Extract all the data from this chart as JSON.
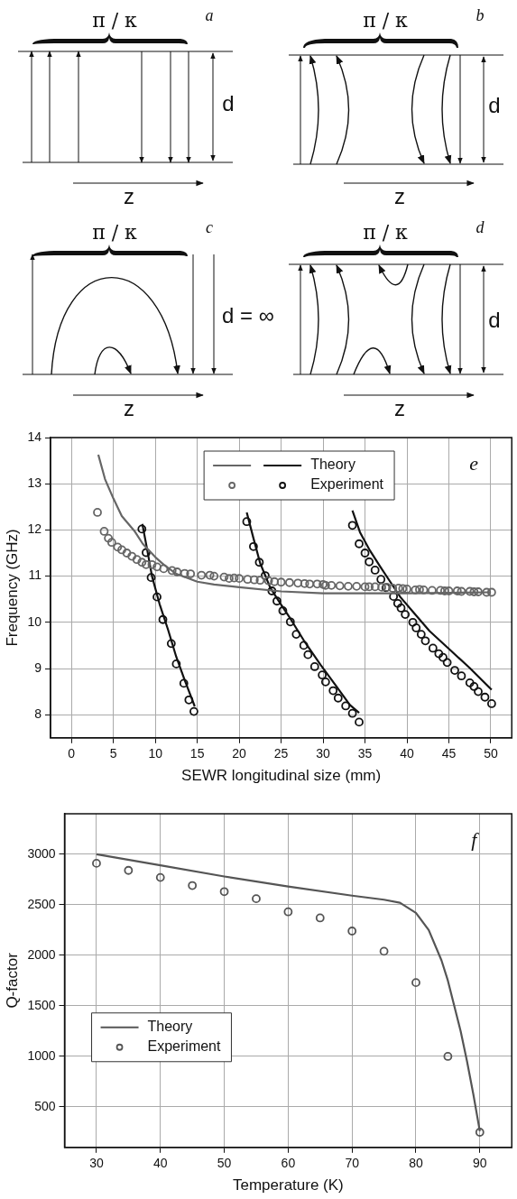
{
  "chart_data": [
    {
      "type": "other",
      "annotations": [
        "π / κ",
        "a",
        "d",
        "z",
        "π / κ",
        "b",
        "d",
        "z",
        "π / κ",
        "c",
        "d = ∞",
        "z",
        "π / κ",
        "d",
        "d",
        "z"
      ]
    },
    {
      "type": "line",
      "xlabel": "SEWR longitudinal size (mm)",
      "ylabel": "Frequency (GHz)",
      "xlim": [
        -2.5,
        52.5
      ],
      "ylim": [
        7.5,
        14
      ],
      "xticks": [
        0,
        5,
        10,
        15,
        20,
        25,
        30,
        35,
        40,
        45,
        50
      ],
      "yticks": [
        8,
        9,
        10,
        11,
        12,
        13,
        14
      ],
      "grid": true,
      "legend": "top",
      "annotations": [
        "e"
      ],
      "series": [
        {
          "type": "line",
          "color": "#666666",
          "x": [
            3.2,
            4,
            5,
            6,
            7.5,
            8.5,
            10,
            11,
            12.5,
            15,
            17,
            20,
            25,
            30,
            35,
            40,
            45,
            50
          ],
          "values": [
            13.63,
            13.1,
            12.68,
            12.3,
            11.98,
            11.7,
            11.41,
            11.25,
            11.05,
            10.88,
            10.82,
            10.76,
            10.67,
            10.63,
            10.63,
            10.63,
            10.64,
            10.65
          ]
        },
        {
          "type": "scatter",
          "marker": "circle",
          "color": "#666666",
          "x": [
            3.1,
            3.9,
            4.4,
            4.8,
            5.5,
            6,
            6.6,
            7.2,
            7.8,
            8.4,
            8.9,
            9.6,
            10.2,
            11,
            12,
            12.6,
            13.5,
            14.2,
            15.5,
            16.5,
            17,
            18.2,
            18.8,
            19.4,
            20,
            21,
            21.8,
            22.5,
            23.5,
            24.2,
            25,
            26,
            27,
            27.8,
            28.4,
            29.3,
            30,
            30.3,
            31,
            32,
            33,
            34,
            35,
            35.5,
            36.2,
            37,
            37.6,
            38.3,
            39,
            39.5,
            40,
            41,
            41.5,
            42,
            43,
            44,
            44.5,
            45,
            46,
            46.5,
            47.5,
            48,
            48.5,
            49.5,
            50.1
          ],
          "values": [
            12.38,
            11.97,
            11.82,
            11.73,
            11.63,
            11.57,
            11.5,
            11.43,
            11.36,
            11.3,
            11.25,
            11.25,
            11.2,
            11.16,
            11.12,
            11.09,
            11.06,
            11.05,
            11.02,
            11.02,
            11,
            10.98,
            10.95,
            10.96,
            10.95,
            10.93,
            10.92,
            10.91,
            10.9,
            10.88,
            10.87,
            10.86,
            10.85,
            10.84,
            10.83,
            10.83,
            10.82,
            10.8,
            10.8,
            10.79,
            10.78,
            10.78,
            10.77,
            10.77,
            10.77,
            10.76,
            10.76,
            10.74,
            10.74,
            10.73,
            10.72,
            10.7,
            10.71,
            10.7,
            10.69,
            10.69,
            10.68,
            10.68,
            10.68,
            10.67,
            10.67,
            10.66,
            10.66,
            10.65,
            10.65
          ]
        },
        {
          "name": "Theory",
          "type": "line",
          "color": "#111111",
          "x": [
            8.45,
            9,
            9.6,
            10.5,
            11.5,
            12.5,
            13.5,
            14.7
          ],
          "values": [
            12.13,
            11.6,
            11,
            10.4,
            9.85,
            9.25,
            8.75,
            8.18
          ]
        },
        {
          "type": "line",
          "color": "#111111",
          "x": [
            20.9,
            21.7,
            22.5,
            23.7,
            24.9,
            26.1,
            27.7,
            29.7,
            31.6,
            33.2,
            34.3
          ],
          "values": [
            12.38,
            11.82,
            11.28,
            10.75,
            10.41,
            10.08,
            9.61,
            9.08,
            8.61,
            8.21,
            8.04
          ]
        },
        {
          "type": "line",
          "color": "#111111",
          "x": [
            33.5,
            34.4,
            35.6,
            36.8,
            38,
            39.2,
            40.8,
            42.7,
            45.1,
            47.5,
            50.1
          ],
          "values": [
            12.42,
            11.95,
            11.55,
            11.21,
            10.88,
            10.55,
            10.21,
            9.81,
            9.41,
            9.01,
            8.54
          ]
        },
        {
          "name": "Experiment",
          "type": "scatter",
          "marker": "circle",
          "color": "#111111",
          "x": [
            8.4,
            8.9,
            9.5,
            10.2,
            10.9,
            11.9,
            12.5,
            13.4,
            14,
            14.6,
            20.9,
            21.7,
            22.4,
            23.1,
            23.9,
            24.5,
            25.2,
            26.1,
            26.8,
            27.7,
            28.2,
            29,
            29.9,
            30.3,
            31.2,
            31.8,
            32.7,
            33.5,
            34.3,
            33.5,
            34.3,
            35,
            35.5,
            36.2,
            36.9,
            37.5,
            38.4,
            38.9,
            39.3,
            39.8,
            40.7,
            41.1,
            41.7,
            42.2,
            43.1,
            43.8,
            44.3,
            44.8,
            45.7,
            46.5,
            47.5,
            48,
            48.5,
            49.3,
            50.1
          ],
          "values": [
            12.02,
            11.51,
            10.97,
            10.55,
            10.06,
            9.54,
            9.1,
            8.68,
            8.32,
            8.07,
            12.18,
            11.64,
            11.3,
            11.01,
            10.68,
            10.46,
            10.25,
            10.01,
            9.74,
            9.5,
            9.3,
            9.04,
            8.86,
            8.71,
            8.52,
            8.36,
            8.19,
            8.03,
            7.84,
            12.1,
            11.7,
            11.5,
            11.31,
            11.13,
            10.93,
            10.75,
            10.56,
            10.41,
            10.31,
            10.17,
            10,
            9.88,
            9.74,
            9.6,
            9.44,
            9.32,
            9.24,
            9.13,
            8.96,
            8.84,
            8.69,
            8.61,
            8.5,
            8.38,
            8.24
          ]
        }
      ]
    },
    {
      "type": "line",
      "xlabel": "Temperature (K)",
      "ylabel": "Q-factor",
      "xlim": [
        25,
        95
      ],
      "ylim": [
        100,
        3400
      ],
      "xticks": [
        30,
        40,
        50,
        60,
        70,
        80,
        90
      ],
      "yticks": [
        500,
        1000,
        1500,
        2000,
        2500,
        3000
      ],
      "grid": true,
      "legend": "left",
      "annotations": [
        "f"
      ],
      "series": [
        {
          "name": "Theory",
          "type": "line",
          "color": "#555555",
          "x": [
            30,
            40,
            50,
            60,
            70,
            75,
            77.5,
            80,
            82,
            84,
            85,
            87,
            88,
            89,
            90
          ],
          "values": [
            3000,
            2890,
            2780,
            2680,
            2590,
            2550,
            2520,
            2420,
            2250,
            1950,
            1750,
            1250,
            950,
            620,
            260
          ]
        },
        {
          "name": "Experiment",
          "type": "scatter",
          "marker": "circle",
          "color": "#555555",
          "x": [
            30,
            35,
            40,
            45,
            50,
            55,
            60,
            65,
            70,
            75,
            80,
            85,
            90
          ],
          "values": [
            2910,
            2840,
            2770,
            2690,
            2630,
            2560,
            2430,
            2370,
            2240,
            2040,
            1730,
            1000,
            250
          ]
        }
      ]
    }
  ]
}
